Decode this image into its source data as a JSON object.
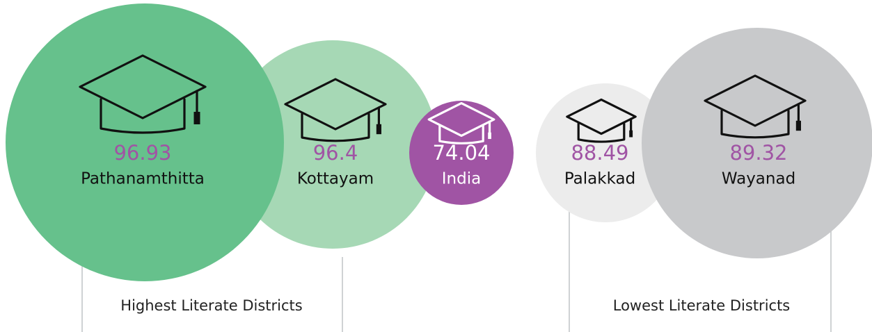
{
  "districts": [
    {
      "value": 96.93,
      "name": "Pathanamthitta"
    },
    {
      "value": 96.4,
      "name": "Kottayam"
    },
    {
      "value": 74.04,
      "name": "India"
    },
    {
      "value": 88.49,
      "name": "Palakkad"
    },
    {
      "value": 89.32,
      "name": "Wayanad"
    }
  ],
  "captions": {
    "highest": "Highest Literate Districts",
    "lowest": "Lowest Literate Districts"
  }
}
